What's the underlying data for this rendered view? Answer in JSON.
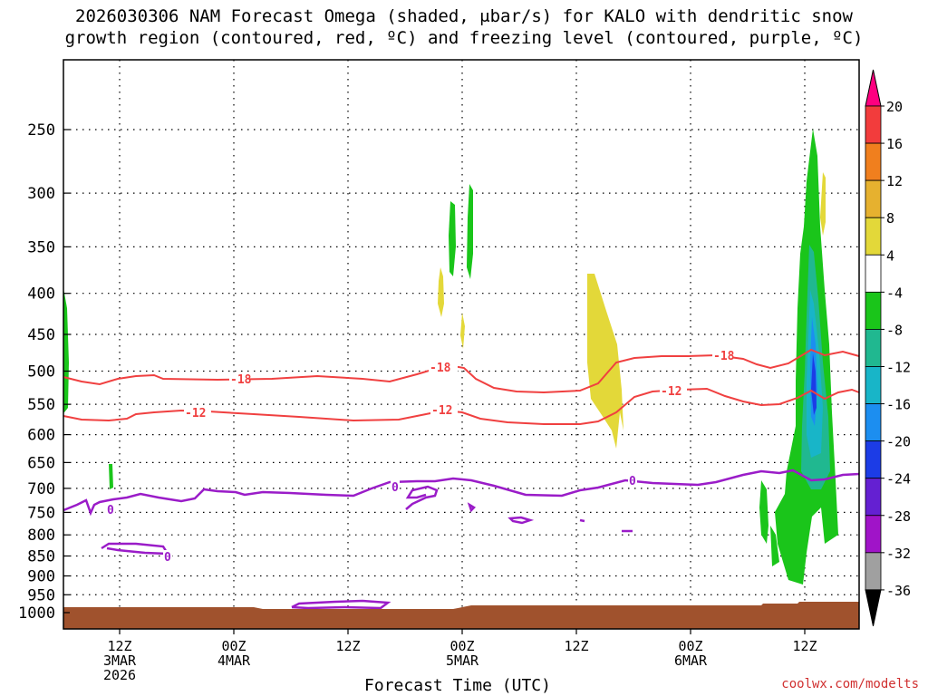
{
  "title_line1": "2026030306 NAM Forecast Omega (shaded, μbar/s) for KALO with dendritic snow",
  "title_line2": "growth region (contoured, red, ºC) and freezing level (contoured, purple, ºC)",
  "xlabel": "Forecast Time (UTC)",
  "credit": "coolwx.com/modelts",
  "chart_data": {
    "type": "heatmap",
    "title": "2026030306 NAM Forecast Omega (shaded, μbar/s) for KALO with dendritic snow growth region (contoured, red, ºC) and freezing level (contoured, purple, ºC)",
    "xlabel": "Forecast Time (UTC)",
    "ylabel": "",
    "y_scale": "log-pressure",
    "ylim": [
      1000,
      200
    ],
    "y_ticks": [
      "250",
      "300",
      "350",
      "400",
      "450",
      "500",
      "550",
      "600",
      "650",
      "700",
      "750",
      "800",
      "850",
      "900",
      "950",
      "1000"
    ],
    "x_ticks": [
      {
        "line1": "12Z",
        "line2": "3MAR",
        "line3": "2026"
      },
      {
        "line1": "00Z",
        "line2": "4MAR",
        "line3": ""
      },
      {
        "line1": "12Z",
        "line2": "",
        "line3": ""
      },
      {
        "line1": "00Z",
        "line2": "5MAR",
        "line3": ""
      },
      {
        "line1": "12Z",
        "line2": "",
        "line3": ""
      },
      {
        "line1": "00Z",
        "line2": "6MAR",
        "line3": ""
      },
      {
        "line1": "12Z",
        "line2": "",
        "line3": ""
      }
    ],
    "grid": true,
    "colorbar": {
      "labels": [
        "20",
        "16",
        "12",
        "8",
        "4",
        "-4",
        "-8",
        "-12",
        "-16",
        "-20",
        "-24",
        "-28",
        "-32",
        "-36"
      ],
      "colors": [
        "#ff0080",
        "#f23c3c",
        "#f07f1e",
        "#e6b12f",
        "#e3d839",
        "#ffffff",
        "#1ac51a",
        "#20b890",
        "#18b5c8",
        "#1c8ef0",
        "#1c3ce6",
        "#6420d2",
        "#a014c8",
        "#a0a0a0",
        "#000000"
      ]
    },
    "contours": [
      {
        "name": "DGZ -18",
        "color": "#f04040",
        "labels": [
          "-18",
          "-18",
          "-18"
        ]
      },
      {
        "name": "DGZ -12",
        "color": "#f04040",
        "labels": [
          "-12",
          "-12",
          "-12"
        ]
      },
      {
        "name": "Freezing level 0",
        "color": "#9a1cc8",
        "labels": [
          "0",
          "0",
          "0",
          "0"
        ]
      }
    ],
    "surface_color": "#a0522d"
  }
}
